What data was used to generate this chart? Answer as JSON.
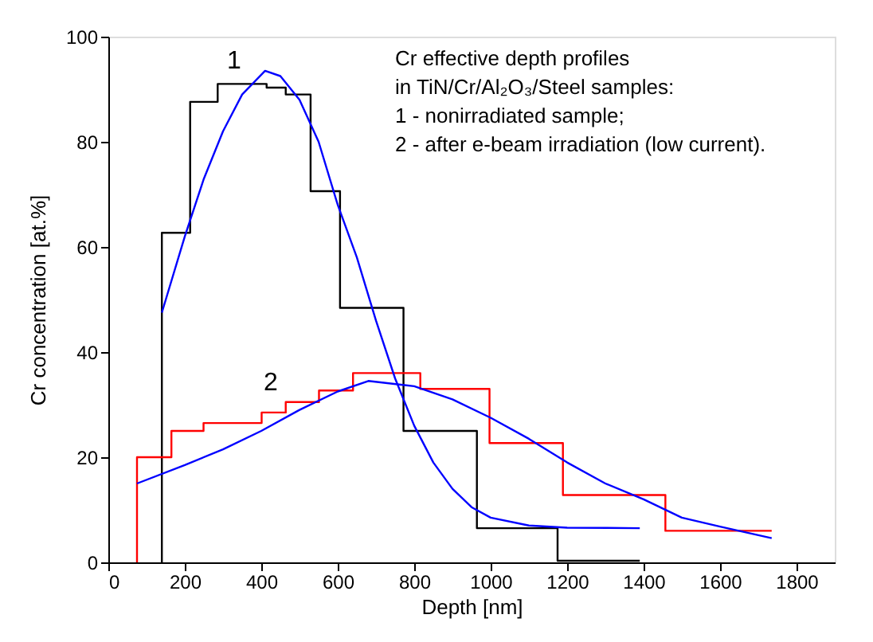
{
  "chart_data": {
    "type": "step",
    "xlabel": "Depth [nm]",
    "ylabel": "Cr concentration [at.%]",
    "xlim": [
      0,
      1900
    ],
    "xticks": [
      0,
      200,
      400,
      600,
      800,
      1000,
      1200,
      1400,
      1600,
      1800
    ],
    "ylim": [
      0,
      100
    ],
    "yticks": [
      0,
      20,
      40,
      60,
      80,
      100
    ],
    "grid": false,
    "marker": "none",
    "line_style": "solid",
    "series": [
      {
        "color": "#000000",
        "x": [
          140,
          140,
          214,
          286,
          414,
          464,
          529,
          606,
          772,
          964,
          1175,
          1390
        ],
        "values": [
          0,
          62.7,
          87.6,
          91,
          90.3,
          89,
          70.6,
          48.4,
          25,
          6.5,
          0.3,
          0.3
        ]
      },
      {
        "color": "#ff0000",
        "x": [
          75,
          75,
          165,
          249,
          401,
          464,
          551,
          640,
          816,
          997,
          1189,
          1457,
          1735
        ],
        "values": [
          0,
          20,
          25,
          26.5,
          28.5,
          30.5,
          32.7,
          36,
          33,
          22.7,
          12.8,
          6,
          6
        ]
      },
      {
        "type": "line",
        "color": "#0000ff",
        "x": [
          140,
          200,
          250,
          300,
          350,
          410,
          450,
          500,
          550,
          600,
          650,
          700,
          750,
          800,
          850,
          900,
          950,
          1000,
          1100,
          1200,
          1390
        ],
        "values": [
          47.5,
          62,
          73,
          82,
          89,
          93.5,
          92.5,
          88,
          80,
          68,
          58,
          46,
          35,
          26,
          19,
          14,
          10.5,
          8.5,
          7,
          6.6,
          6.5
        ]
      },
      {
        "type": "line",
        "color": "#0000ff",
        "x": [
          75,
          200,
          300,
          400,
          500,
          600,
          680,
          800,
          900,
          1000,
          1100,
          1200,
          1300,
          1400,
          1500,
          1600,
          1735
        ],
        "values": [
          15,
          18.5,
          21.5,
          25,
          29,
          32.5,
          34.5,
          33.5,
          31,
          27.5,
          23.5,
          19,
          15,
          12,
          8.5,
          6.8,
          4.6
        ]
      }
    ],
    "annotations": [
      "1",
      "2",
      "Cr effective depth profiles",
      "in TiN/Cr/Al₂O₃/Steel samples:",
      "1 - nonirradiated sample;",
      "2 - after e-beam irradiation (low current)."
    ]
  }
}
